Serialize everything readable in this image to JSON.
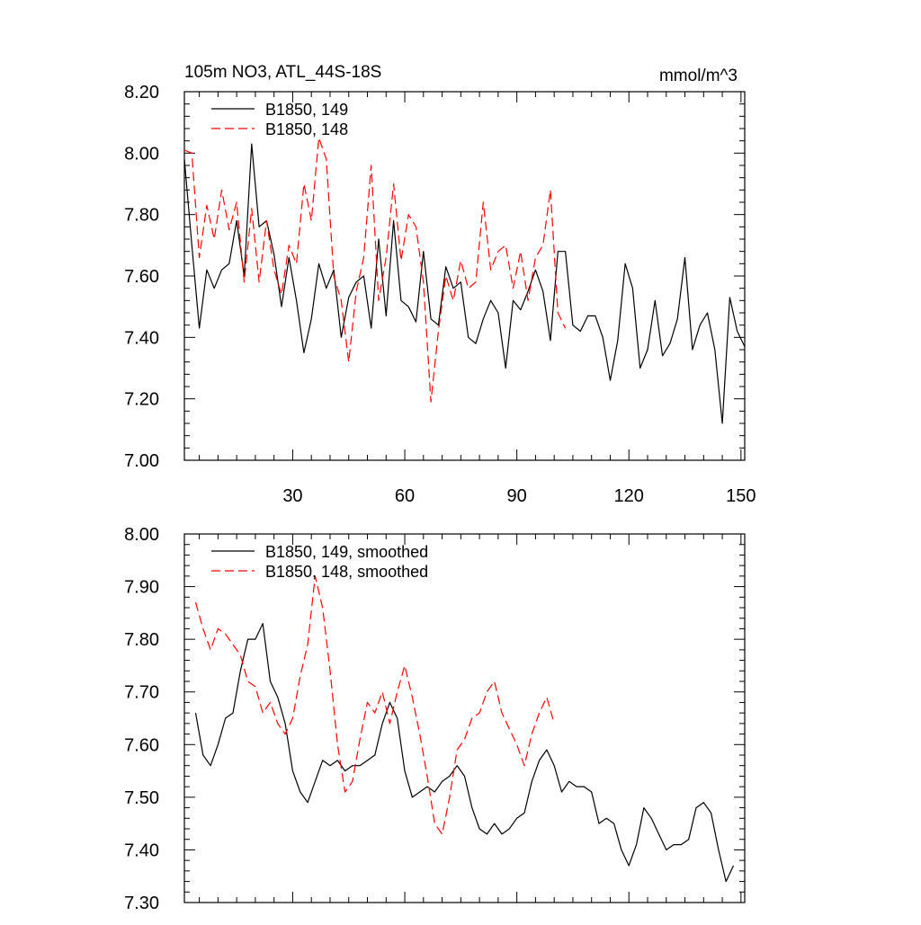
{
  "chart_data": [
    {
      "type": "line",
      "title": "105m NO3, ATL_44S-18S",
      "units": "mmol/m^3",
      "xlim": [
        1,
        151
      ],
      "ylim": [
        7.0,
        8.2
      ],
      "xticks": [
        30,
        60,
        90,
        120,
        150
      ],
      "xtick_labels": [
        "30",
        "60",
        "90",
        "120",
        "150"
      ],
      "yticks": [
        7.0,
        7.2,
        7.4,
        7.6,
        7.8,
        8.0,
        8.2
      ],
      "ytick_labels": [
        "7.00",
        "7.20",
        "7.40",
        "7.60",
        "7.80",
        "8.00",
        "8.20"
      ],
      "legend_position": "top-left",
      "series": [
        {
          "name": "B1850, 149",
          "color": "#000000",
          "dash": "solid",
          "x": [
            1,
            3,
            5,
            7,
            9,
            11,
            13,
            15,
            17,
            19,
            21,
            23,
            25,
            27,
            29,
            31,
            33,
            35,
            37,
            39,
            41,
            43,
            45,
            47,
            49,
            51,
            53,
            55,
            57,
            59,
            61,
            63,
            65,
            67,
            69,
            71,
            73,
            75,
            77,
            79,
            81,
            83,
            85,
            87,
            89,
            91,
            93,
            95,
            97,
            99,
            101,
            103,
            105,
            107,
            109,
            111,
            113,
            115,
            117,
            119,
            121,
            123,
            125,
            127,
            129,
            131,
            133,
            135,
            137,
            139,
            141,
            143,
            145,
            147,
            149,
            151
          ],
          "values": [
            7.98,
            7.7,
            7.43,
            7.62,
            7.56,
            7.62,
            7.64,
            7.78,
            7.6,
            8.03,
            7.76,
            7.78,
            7.67,
            7.5,
            7.66,
            7.52,
            7.35,
            7.46,
            7.64,
            7.56,
            7.62,
            7.4,
            7.53,
            7.58,
            7.6,
            7.43,
            7.72,
            7.47,
            7.78,
            7.52,
            7.5,
            7.45,
            7.68,
            7.46,
            7.44,
            7.63,
            7.56,
            7.58,
            7.4,
            7.38,
            7.46,
            7.52,
            7.48,
            7.3,
            7.52,
            7.49,
            7.55,
            7.62,
            7.55,
            7.39,
            7.68,
            7.68,
            7.44,
            7.42,
            7.47,
            7.47,
            7.4,
            7.26,
            7.39,
            7.64,
            7.56,
            7.3,
            7.36,
            7.52,
            7.34,
            7.38,
            7.46,
            7.66,
            7.36,
            7.44,
            7.48,
            7.36,
            7.12,
            7.53,
            7.42,
            7.37
          ]
        },
        {
          "name": "B1850, 148",
          "color": "#ff0000",
          "dash": "dashed",
          "x": [
            1,
            3,
            5,
            7,
            9,
            11,
            13,
            15,
            17,
            19,
            21,
            23,
            25,
            27,
            29,
            31,
            33,
            35,
            37,
            39,
            41,
            43,
            45,
            47,
            49,
            51,
            53,
            55,
            57,
            59,
            61,
            63,
            65,
            67,
            69,
            71,
            73,
            75,
            77,
            79,
            81,
            83,
            85,
            87,
            89,
            91,
            93,
            95,
            97,
            99,
            101,
            103
          ],
          "values": [
            8.01,
            8.0,
            7.66,
            7.83,
            7.72,
            7.88,
            7.75,
            7.84,
            7.58,
            7.82,
            7.58,
            7.78,
            7.62,
            7.54,
            7.7,
            7.64,
            7.9,
            7.78,
            8.05,
            7.98,
            7.6,
            7.52,
            7.32,
            7.55,
            7.66,
            7.96,
            7.52,
            7.66,
            7.9,
            7.65,
            7.8,
            7.76,
            7.58,
            7.19,
            7.42,
            7.6,
            7.52,
            7.65,
            7.56,
            7.58,
            7.84,
            7.62,
            7.68,
            7.7,
            7.56,
            7.68,
            7.52,
            7.66,
            7.7,
            7.88,
            7.48,
            7.43
          ]
        }
      ]
    },
    {
      "type": "line",
      "title": "",
      "xlim": [
        1,
        151
      ],
      "ylim": [
        7.3,
        8.0
      ],
      "xticks": [
        30,
        60,
        90,
        120,
        150
      ],
      "yticks": [
        7.3,
        7.4,
        7.5,
        7.6,
        7.7,
        7.8,
        7.9,
        8.0
      ],
      "ytick_labels": [
        "7.30",
        "7.40",
        "7.50",
        "7.60",
        "7.70",
        "7.80",
        "7.90",
        "8.00"
      ],
      "legend_position": "top-left",
      "series": [
        {
          "name": "B1850, 149, smoothed",
          "color": "#000000",
          "dash": "solid",
          "x": [
            4,
            6,
            8,
            10,
            12,
            14,
            16,
            18,
            20,
            22,
            24,
            26,
            28,
            30,
            32,
            34,
            36,
            38,
            40,
            42,
            44,
            46,
            48,
            50,
            52,
            54,
            56,
            58,
            60,
            62,
            64,
            66,
            68,
            70,
            72,
            74,
            76,
            78,
            80,
            82,
            84,
            86,
            88,
            90,
            92,
            94,
            96,
            98,
            100,
            102,
            104,
            106,
            108,
            110,
            112,
            114,
            116,
            118,
            120,
            122,
            124,
            126,
            128,
            130,
            132,
            134,
            136,
            138,
            140,
            142,
            144,
            146,
            148
          ],
          "values": [
            7.66,
            7.58,
            7.56,
            7.6,
            7.65,
            7.66,
            7.74,
            7.8,
            7.8,
            7.83,
            7.72,
            7.69,
            7.64,
            7.55,
            7.51,
            7.49,
            7.53,
            7.57,
            7.56,
            7.57,
            7.55,
            7.56,
            7.56,
            7.57,
            7.58,
            7.64,
            7.68,
            7.65,
            7.55,
            7.5,
            7.51,
            7.52,
            7.51,
            7.53,
            7.54,
            7.56,
            7.54,
            7.48,
            7.44,
            7.43,
            7.45,
            7.43,
            7.44,
            7.46,
            7.47,
            7.53,
            7.57,
            7.59,
            7.56,
            7.51,
            7.53,
            7.52,
            7.52,
            7.51,
            7.45,
            7.46,
            7.45,
            7.4,
            7.37,
            7.41,
            7.48,
            7.46,
            7.43,
            7.4,
            7.41,
            7.41,
            7.42,
            7.48,
            7.49,
            7.47,
            7.4,
            7.34,
            7.37
          ]
        },
        {
          "name": "B1850, 148, smoothed",
          "color": "#ff0000",
          "dash": "dashed",
          "x": [
            4,
            6,
            8,
            10,
            12,
            14,
            16,
            18,
            20,
            22,
            24,
            26,
            28,
            30,
            32,
            34,
            36,
            38,
            40,
            42,
            44,
            46,
            48,
            50,
            52,
            54,
            56,
            58,
            60,
            62,
            64,
            66,
            68,
            70,
            72,
            74,
            76,
            78,
            80,
            82,
            84,
            86,
            88,
            90,
            92,
            94,
            96,
            98,
            100
          ],
          "values": [
            7.87,
            7.82,
            7.78,
            7.82,
            7.81,
            7.79,
            7.77,
            7.72,
            7.71,
            7.66,
            7.68,
            7.64,
            7.62,
            7.65,
            7.73,
            7.79,
            7.92,
            7.86,
            7.74,
            7.6,
            7.51,
            7.53,
            7.61,
            7.68,
            7.66,
            7.7,
            7.64,
            7.7,
            7.75,
            7.69,
            7.62,
            7.54,
            7.45,
            7.43,
            7.5,
            7.59,
            7.61,
            7.65,
            7.66,
            7.7,
            7.72,
            7.66,
            7.63,
            7.6,
            7.56,
            7.62,
            7.66,
            7.69,
            7.64
          ]
        }
      ]
    }
  ]
}
